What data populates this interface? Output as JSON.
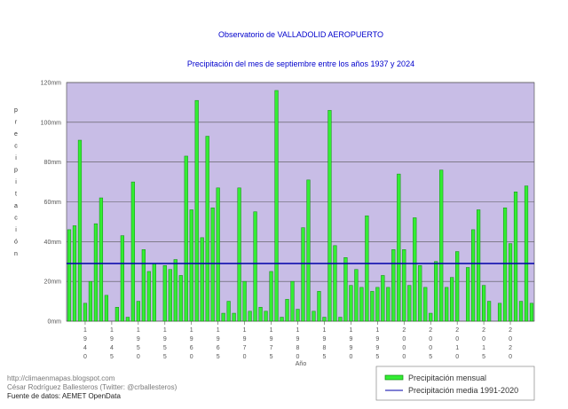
{
  "header": {
    "title": "Observatorio de VALLADOLID AEROPUERTO",
    "subtitle": "Precipitación del mes de septiembre entre los años 1937 y 2024"
  },
  "footer": {
    "url": "http://climaenmapas.blogspot.com",
    "author": "César Rodríguez Ballesteros (Twitter: @crballesteros)",
    "source": "Fuente de datos: AEMET OpenData"
  },
  "colors": {
    "plot_background": "#c8bde6",
    "bar_fill": "#33ee33",
    "bar_stroke": "#118811",
    "mean_line": "#0000aa",
    "title_text": "#0000cc"
  },
  "chart_data": {
    "type": "bar",
    "ylabel": "precipitación",
    "xlabel": "Año",
    "ylim": [
      0,
      120
    ],
    "y_tick_labels": [
      "0mm",
      "20mm",
      "40mm",
      "60mm",
      "80mm",
      "100mm",
      "120mm"
    ],
    "y_tick_values": [
      0,
      20,
      40,
      60,
      80,
      100,
      120
    ],
    "x_tick_labels": [
      "1940",
      "1945",
      "1950",
      "1955",
      "1960",
      "1965",
      "1970",
      "1975",
      "1980",
      "1985",
      "1990",
      "1995",
      "2000",
      "2005",
      "2010",
      "2015",
      "2020"
    ],
    "grid": true,
    "legend_position": "bottom-right",
    "legend": [
      "Precipitación mensual",
      "Precipitación media 1991-2020"
    ],
    "x": [
      1937,
      1938,
      1939,
      1940,
      1941,
      1942,
      1943,
      1944,
      1945,
      1946,
      1947,
      1948,
      1949,
      1950,
      1951,
      1952,
      1953,
      1954,
      1955,
      1956,
      1957,
      1958,
      1959,
      1960,
      1961,
      1962,
      1963,
      1964,
      1965,
      1966,
      1967,
      1968,
      1969,
      1970,
      1971,
      1972,
      1973,
      1974,
      1975,
      1976,
      1977,
      1978,
      1979,
      1980,
      1981,
      1982,
      1983,
      1984,
      1985,
      1986,
      1987,
      1988,
      1989,
      1990,
      1991,
      1992,
      1993,
      1994,
      1995,
      1996,
      1997,
      1998,
      1999,
      2000,
      2001,
      2002,
      2003,
      2004,
      2005,
      2006,
      2007,
      2008,
      2009,
      2010,
      2011,
      2012,
      2013,
      2014,
      2015,
      2016,
      2017,
      2018,
      2019,
      2020,
      2021,
      2022,
      2023,
      2024
    ],
    "series": [
      {
        "name": "Precipitación mensual",
        "values": [
          46,
          48,
          91,
          9,
          20,
          49,
          62,
          13,
          0,
          7,
          43,
          2,
          70,
          10,
          36,
          25,
          29,
          0,
          28,
          26,
          31,
          23,
          83,
          56,
          111,
          42,
          93,
          57,
          67,
          4,
          10,
          4,
          67,
          20,
          5,
          55,
          7,
          5,
          25,
          116,
          2,
          11,
          20,
          6,
          47,
          71,
          5,
          15,
          2,
          106,
          38,
          2,
          32,
          18,
          26,
          17,
          53,
          15,
          17,
          23,
          17,
          36,
          74,
          36,
          18,
          52,
          28,
          17,
          4,
          30,
          76,
          17,
          22,
          35,
          0,
          27,
          46,
          56,
          18,
          10,
          0,
          9,
          57,
          39,
          65,
          10,
          68,
          9
        ]
      }
    ],
    "reference_line": {
      "name": "Precipitación media 1991-2020",
      "value": 29
    }
  }
}
